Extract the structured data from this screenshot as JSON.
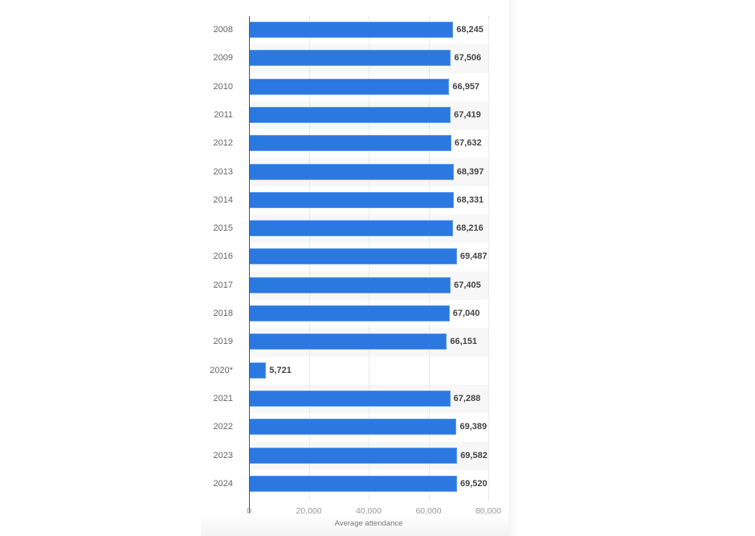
{
  "chart_data": {
    "type": "bar",
    "orientation": "horizontal",
    "title": "",
    "xlabel": "Average attendance",
    "ylabel": "",
    "xlim": [
      0,
      80000
    ],
    "x_ticks": [
      "0",
      "20,000",
      "40,000",
      "60,000",
      "80,000"
    ],
    "grid": true,
    "legend": null,
    "bar_color": "#2b78e0",
    "categories": [
      "2008",
      "2009",
      "2010",
      "2011",
      "2012",
      "2013",
      "2014",
      "2015",
      "2016",
      "2017",
      "2018",
      "2019",
      "2020*",
      "2021",
      "2022",
      "2023",
      "2024"
    ],
    "values": [
      68245,
      67506,
      66957,
      67419,
      67632,
      68397,
      68331,
      68216,
      69487,
      67405,
      67040,
      66151,
      5721,
      67288,
      69389,
      69582,
      69520
    ],
    "value_labels": [
      "68,245",
      "67,506",
      "66,957",
      "67,419",
      "67,632",
      "68,397",
      "68,331",
      "68,216",
      "69,487",
      "67,405",
      "67,040",
      "66,151",
      "5,721",
      "67,288",
      "69,389",
      "69,582",
      "69,520"
    ]
  }
}
